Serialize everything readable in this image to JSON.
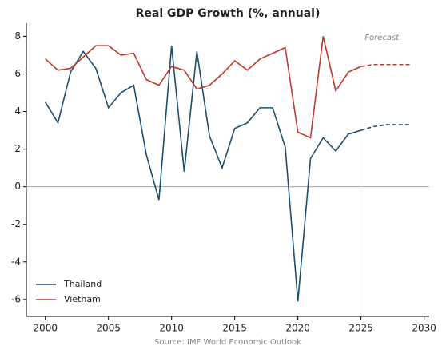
{
  "chart_data": {
    "type": "line",
    "title": "Real GDP Growth (%, annual)",
    "x": [
      2000,
      2001,
      2002,
      2003,
      2004,
      2005,
      2006,
      2007,
      2008,
      2009,
      2010,
      2011,
      2012,
      2013,
      2014,
      2015,
      2016,
      2017,
      2018,
      2019,
      2020,
      2021,
      2022,
      2023,
      2024,
      2025,
      2026,
      2027,
      2028,
      2029
    ],
    "series": [
      {
        "name": "Thailand",
        "color": "#1b4f72",
        "values": [
          4.5,
          3.4,
          6.1,
          7.2,
          6.3,
          4.2,
          5.0,
          5.4,
          1.7,
          -0.7,
          7.5,
          0.8,
          7.2,
          2.7,
          1.0,
          3.1,
          3.4,
          4.2,
          4.2,
          2.1,
          -6.1,
          1.5,
          2.6,
          1.9,
          2.8,
          3.0,
          3.2,
          3.3,
          3.3,
          3.3
        ]
      },
      {
        "name": "Vietnam",
        "color": "#c0392b",
        "values": [
          6.8,
          6.2,
          6.3,
          6.9,
          7.5,
          7.5,
          7.0,
          7.1,
          5.7,
          5.4,
          6.4,
          6.2,
          5.2,
          5.4,
          6.0,
          6.7,
          6.2,
          6.8,
          7.1,
          7.4,
          2.9,
          2.6,
          8.0,
          5.1,
          6.1,
          6.4,
          6.5,
          6.5,
          6.5,
          6.5
        ]
      }
    ],
    "forecast_start": 2025,
    "forecast_label": "Forecast",
    "hline": 0,
    "xlim": [
      1998.5,
      2030.4
    ],
    "xticks": [
      2000,
      2005,
      2010,
      2015,
      2020,
      2025,
      2030
    ],
    "ylim": [
      -6.9,
      8.7
    ],
    "yticks": [
      -6,
      -4,
      -2,
      0,
      2,
      4,
      6,
      8
    ],
    "legend": "lower left",
    "source": "Source: IMF World Economic Outlook"
  }
}
